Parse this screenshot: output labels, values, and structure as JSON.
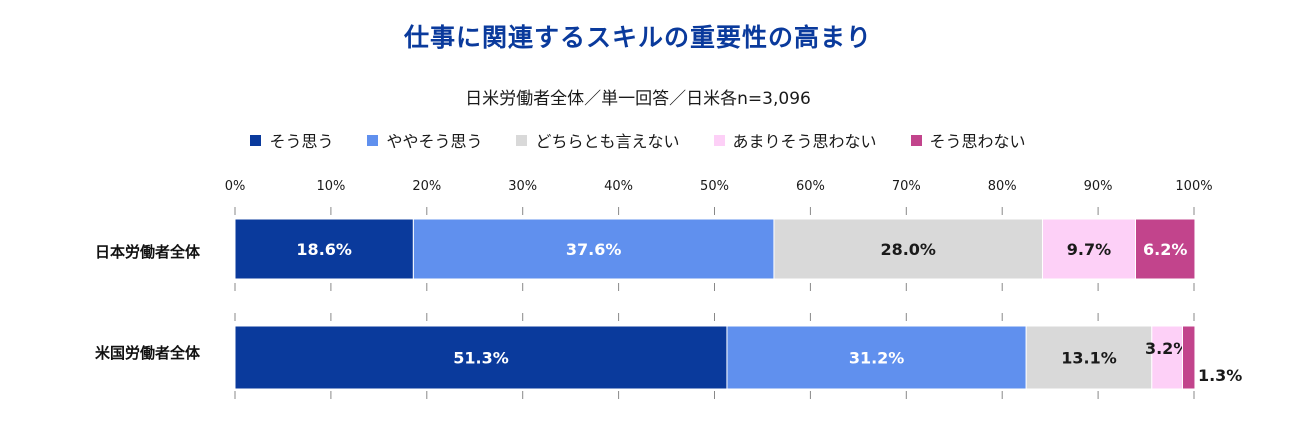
{
  "title": "仕事に関連するスキルの重要性の高まり",
  "subtitle": "日米労働者全体／単一回答／日米各n=3,096",
  "colors": {
    "title": "#0a3a9c",
    "strongly_agree": "#0a3a9c",
    "somewhat_agree": "#6090ee",
    "neutral": "#d9d9d9",
    "somewhat_disagree": "#fdd0f7",
    "strongly_disagree": "#c2448c"
  },
  "chart_data": {
    "type": "bar",
    "orientation": "horizontal",
    "stacked": true,
    "title": "仕事に関連するスキルの重要性の高まり",
    "subtitle": "日米労働者全体／単一回答／日米各n=3,096",
    "categories": [
      "日本労働者全体",
      "米国労働者全体"
    ],
    "series": [
      {
        "name": "そう思う",
        "values": [
          18.6,
          51.3
        ],
        "color": "#0a3a9c",
        "label_color": "#ffffff"
      },
      {
        "name": "ややそう思う",
        "values": [
          37.6,
          31.2
        ],
        "color": "#6090ee",
        "label_color": "#ffffff"
      },
      {
        "name": "どちらとも言えない",
        "values": [
          28.0,
          13.1
        ],
        "color": "#d9d9d9",
        "label_color": "#1a1a1a"
      },
      {
        "name": "あまりそう思わない",
        "values": [
          9.7,
          3.2
        ],
        "color": "#fdd0f7",
        "label_color": "#1a1a1a"
      },
      {
        "name": "そう思わない",
        "values": [
          6.2,
          1.3
        ],
        "color": "#c2448c",
        "label_color": "#ffffff"
      }
    ],
    "data_labels": [
      [
        "18.6%",
        "37.6%",
        "28.0%",
        "9.7%",
        "6.2%"
      ],
      [
        "51.3%",
        "31.2%",
        "13.1%",
        "3.2%",
        "1.3%"
      ]
    ],
    "x_ticks": [
      "0%",
      "10%",
      "20%",
      "30%",
      "40%",
      "50%",
      "60%",
      "70%",
      "80%",
      "90%",
      "100%"
    ],
    "xlim": [
      0,
      100
    ],
    "legend_position": "top",
    "grid": false
  }
}
